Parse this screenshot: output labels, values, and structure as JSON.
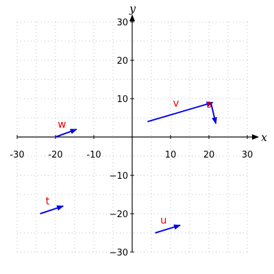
{
  "chart_data": {
    "type": "vector-field",
    "xlabel": "x",
    "ylabel": "y",
    "xlim": [
      -30,
      30
    ],
    "ylim": [
      -30,
      30
    ],
    "xticks": [
      -30,
      -20,
      -10,
      10,
      20,
      30
    ],
    "yticks": [
      -30,
      -20,
      -10,
      10,
      20,
      30
    ],
    "xtick_labels": [
      "-30",
      "-20",
      "-10",
      "10",
      "20",
      "30"
    ],
    "ytick_labels": [
      "−30",
      "−20",
      "−10",
      "10",
      "20",
      "30"
    ],
    "grid": true,
    "vector_color": "#0000ee",
    "label_color": "#ee0000",
    "vectors": [
      {
        "label": "v",
        "from": [
          4,
          4
        ],
        "to": [
          21,
          9
        ]
      },
      {
        "label": "s",
        "from": [
          20.5,
          9
        ],
        "to": [
          21.8,
          3.5
        ]
      },
      {
        "label": "w",
        "from": [
          -20,
          0
        ],
        "to": [
          -14.5,
          2
        ]
      },
      {
        "label": "t",
        "from": [
          -24,
          -20
        ],
        "to": [
          -18,
          -18
        ]
      },
      {
        "label": "u",
        "from": [
          6,
          -25
        ],
        "to": [
          12.5,
          -23
        ]
      }
    ]
  }
}
